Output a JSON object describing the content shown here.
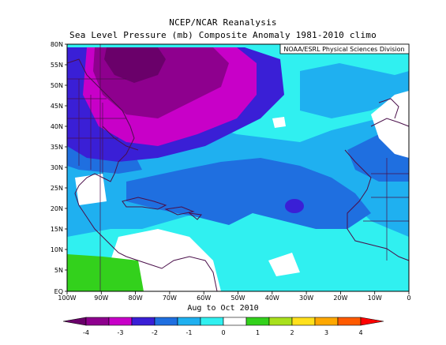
{
  "title": "NCEP/NCAR Reanalysis",
  "subtitle": "Sea Level Pressure (mb) Composite Anomaly 1981-2010 climo",
  "credit": "NOAA/ESRL Physical Sciences Division",
  "period": "Aug to Oct 2010",
  "lat_ticks": [
    "80N",
    "55N",
    "50N",
    "45N",
    "40N",
    "35N",
    "30N",
    "25N",
    "20N",
    "15N",
    "10N",
    "5N",
    "EQ"
  ],
  "lon_ticks": [
    "100W",
    "90W",
    "80W",
    "70W",
    "60W",
    "50W",
    "40W",
    "30W",
    "20W",
    "10W",
    "0"
  ],
  "colorbar": {
    "tick_labels": [
      "-4",
      "-3",
      "-2",
      "-1",
      "0",
      "1",
      "2",
      "3",
      "4"
    ],
    "colors": [
      "#6a006a",
      "#8e008e",
      "#c800c8",
      "#3a1fd6",
      "#1f6fe0",
      "#1fb0f0",
      "#30f0f0",
      "#ffffff",
      "#33d11c",
      "#a8e01c",
      "#ffe01c",
      "#ffa800",
      "#ff5a00",
      "#ff0000"
    ]
  }
}
